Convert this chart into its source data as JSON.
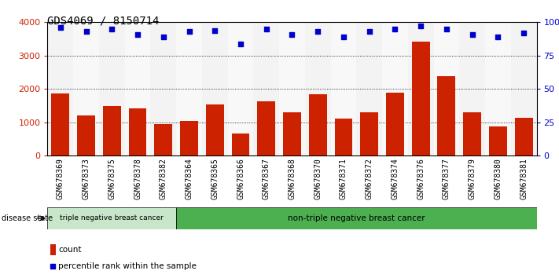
{
  "title": "GDS4069 / 8150714",
  "samples": [
    "GSM678369",
    "GSM678373",
    "GSM678375",
    "GSM678378",
    "GSM678382",
    "GSM678364",
    "GSM678365",
    "GSM678366",
    "GSM678367",
    "GSM678368",
    "GSM678370",
    "GSM678371",
    "GSM678372",
    "GSM678374",
    "GSM678376",
    "GSM678377",
    "GSM678379",
    "GSM678380",
    "GSM678381"
  ],
  "counts": [
    1870,
    1200,
    1480,
    1420,
    950,
    1040,
    1540,
    670,
    1620,
    1290,
    1840,
    1120,
    1300,
    1890,
    3430,
    2380,
    1290,
    880,
    1140
  ],
  "percentiles": [
    96,
    93,
    95,
    91,
    89,
    93,
    94,
    84,
    95,
    91,
    93,
    89,
    93,
    95,
    97,
    95,
    91,
    89,
    92
  ],
  "bar_color": "#cc2200",
  "dot_color": "#0000cc",
  "ylim_left": [
    0,
    4000
  ],
  "ylim_right": [
    0,
    100
  ],
  "yticks_left": [
    0,
    1000,
    2000,
    3000,
    4000
  ],
  "yticks_right": [
    0,
    25,
    50,
    75,
    100
  ],
  "yticklabels_right": [
    "0",
    "25",
    "50",
    "75",
    "100%"
  ],
  "group1_label": "triple negative breast cancer",
  "group2_label": "non-triple negative breast cancer",
  "group1_count": 5,
  "group2_count": 14,
  "disease_state_label": "disease state",
  "group1_bg": "#c8e6c9",
  "group2_bg": "#4caf50",
  "legend_count_label": "count",
  "legend_pct_label": "percentile rank within the sample",
  "title_fontsize": 10,
  "tick_fontsize": 7
}
